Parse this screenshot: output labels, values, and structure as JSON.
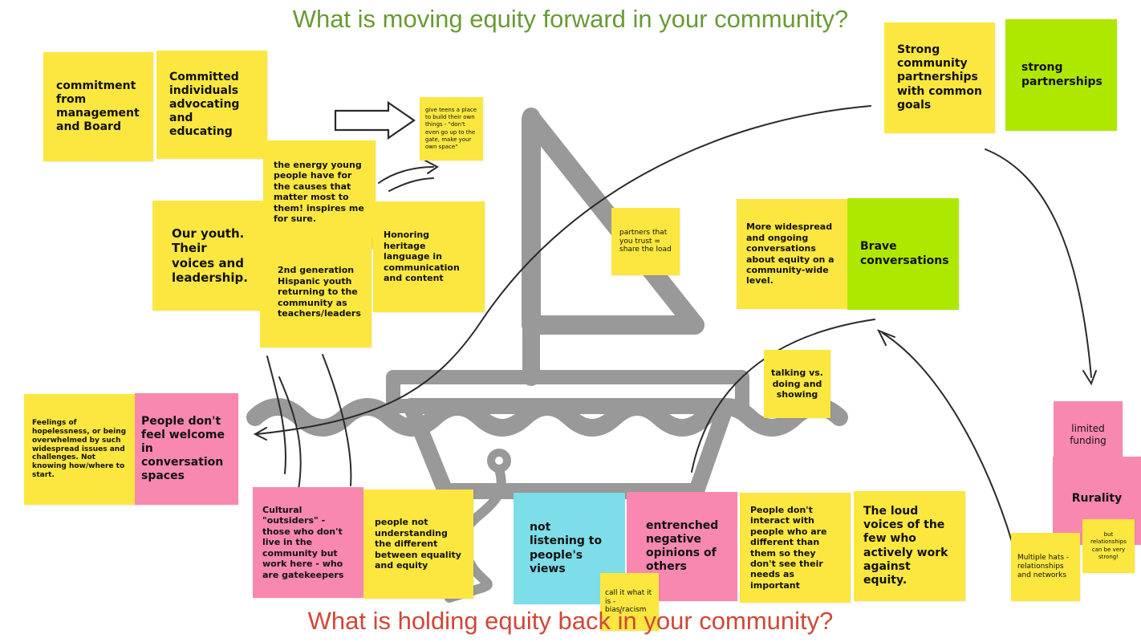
{
  "headings": {
    "top": "What is moving equity forward in your community?",
    "bottom": "What is holding equity back in your community?"
  },
  "colors": {
    "top_heading": "#6a9a35",
    "bottom_heading": "#d04838",
    "yellow_note": "#fbe73f",
    "green_note": "#aee800",
    "pink_note": "#f888b0",
    "cyan_note": "#7ddde8",
    "boat": "#999999",
    "ink": "#2a2a2a"
  },
  "forward_notes": {
    "commitment": "commitment from management and Board",
    "committed_individuals": "Committed individuals advocating and educating",
    "give_teens": "give teens a place to build their own things - \"don't even go up to the gate, make your own space\"",
    "strong_community": "Strong community partnerships with common goals",
    "strong_partnerships": "strong partnerships",
    "energy_young": "the energy young people have for the causes that matter most to them! inspires me for sure.",
    "our_youth": "Our youth. Their voices and leadership.",
    "second_gen": "2nd generation Hispanic youth returning to the community as teachers/leaders",
    "honoring_heritage": "Honoring heritage language in communication and content",
    "partners_trust": "partners that you trust = share the load",
    "more_widespread": "More widespread and ongoing conversations about equity on a community-wide level.",
    "brave_conversations": "Brave conversations"
  },
  "back_notes": {
    "talking_vs_doing": "talking vs. doing and showing",
    "feelings_hopelessness": "Feelings of hopelessness, or being overwhelmed by such widespread issues and challenges. Not knowing how/where to start.",
    "not_welcome": "People don't feel welcome in conversation spaces",
    "limited_funding": "limited funding",
    "rurality": "Rurality",
    "relationships_strong": "but relationships can be very strong!",
    "multiple_hats": "Multiple hats - relationships and networks",
    "cultural_outsiders": "Cultural \"outsiders\" - those who don't live in the community but work here - who are gatekeepers",
    "equality_equity": "people not understanding the different between equality and equity",
    "not_listening": "not listening to people's views",
    "call_it": "call it what it is - bias/racism",
    "entrenched": "entrenched negative opinions of others",
    "dont_interact": "People don't interact with people who are different than them so they don't see their needs as important",
    "loud_voices": "The loud voices of the few who actively work against equity."
  }
}
